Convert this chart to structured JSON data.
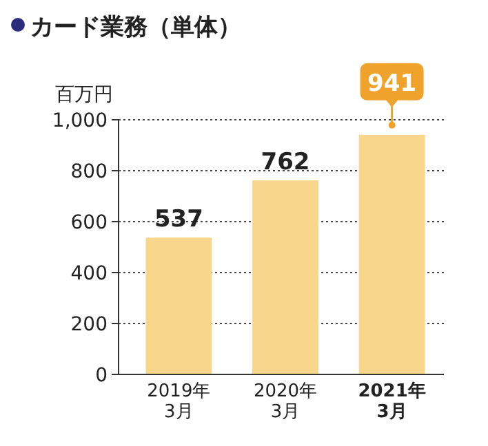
{
  "chart_data": {
    "type": "bar",
    "title": "カード業務（単体）",
    "ylabel": "百万円",
    "categories": [
      "2019年\n3月",
      "2020年\n3月",
      "2021年\n3月"
    ],
    "values": [
      537,
      762,
      941
    ],
    "color": "#f8d68c",
    "ylim": [
      0,
      1000
    ],
    "yticks": [
      0,
      200,
      400,
      600,
      800,
      {
        "value": 1000,
        "label": "1,000"
      }
    ],
    "grid": "y",
    "data_labels": true
  }
}
